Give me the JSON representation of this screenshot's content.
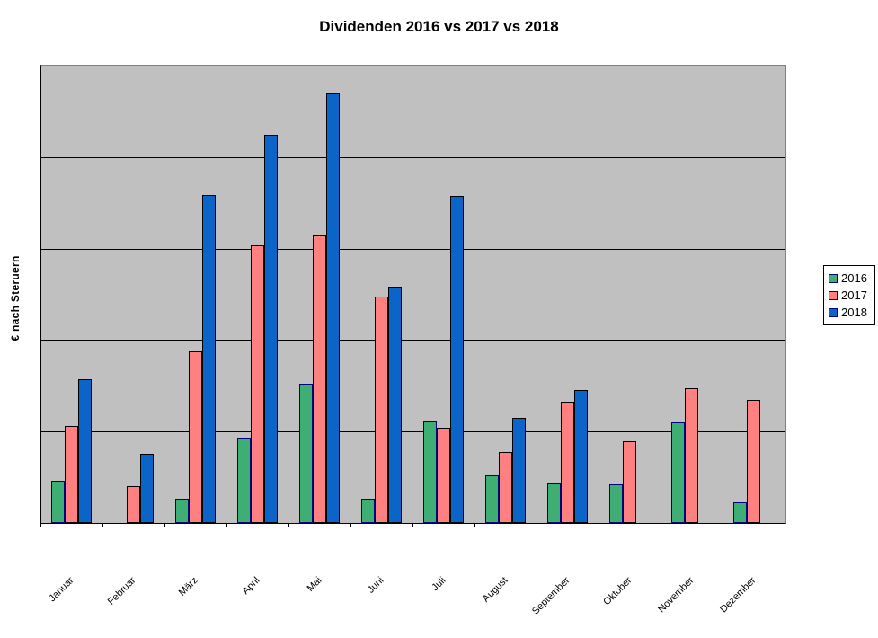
{
  "title": "Dividenden 2016 vs 2017 vs 2018",
  "y_axis_label": "€ nach Steruern",
  "colors": {
    "plot_background": "#c0c0c0",
    "gridline": "#000000",
    "series_2016": "#3fae73",
    "series_2017": "#ff8080",
    "series_2018": "#0b64c8",
    "bar_border_2016": "#000080",
    "bar_border_2017": "#000000",
    "bar_border_2018": "#000000"
  },
  "legend": {
    "items": [
      {
        "label": "2016",
        "color": "#3fae73",
        "border": "#000080"
      },
      {
        "label": "2017",
        "color": "#ff8080",
        "border": "#000080"
      },
      {
        "label": "2018",
        "color": "#0b64c8",
        "border": "#000080"
      }
    ]
  },
  "chart_data": {
    "type": "bar",
    "title": "Dividenden 2016 vs 2017 vs 2018",
    "xlabel": "",
    "ylabel": "€ nach Steruern",
    "categories": [
      "Januar",
      "Februar",
      "März",
      "April",
      "Mai",
      "Juni",
      "Juli",
      "August",
      "September",
      "Oktober",
      "November",
      "Dezember"
    ],
    "series": [
      {
        "name": "2016",
        "color": "#3fae73",
        "border": "#000080",
        "values": [
          0.46,
          null,
          0.27,
          0.93,
          1.52,
          0.27,
          1.11,
          0.52,
          0.43,
          0.42,
          1.1,
          0.23
        ]
      },
      {
        "name": "2017",
        "color": "#ff8080",
        "border": "#000000",
        "values": [
          1.06,
          0.4,
          1.88,
          3.04,
          3.14,
          2.48,
          1.04,
          0.78,
          1.33,
          0.89,
          1.47,
          1.35
        ]
      },
      {
        "name": "2018",
        "color": "#0b64c8",
        "border": "#000000",
        "values": [
          1.57,
          0.76,
          3.59,
          4.24,
          4.7,
          2.58,
          3.58,
          1.15,
          1.45,
          null,
          null,
          null
        ]
      }
    ],
    "ylim": [
      0,
      5
    ],
    "y_gridline_step": 1,
    "y_tick_labels_visible": false,
    "value_units": "gridline units (no numeric y-axis labels shown in chart)",
    "grid": "horizontal",
    "legend_position": "right"
  }
}
